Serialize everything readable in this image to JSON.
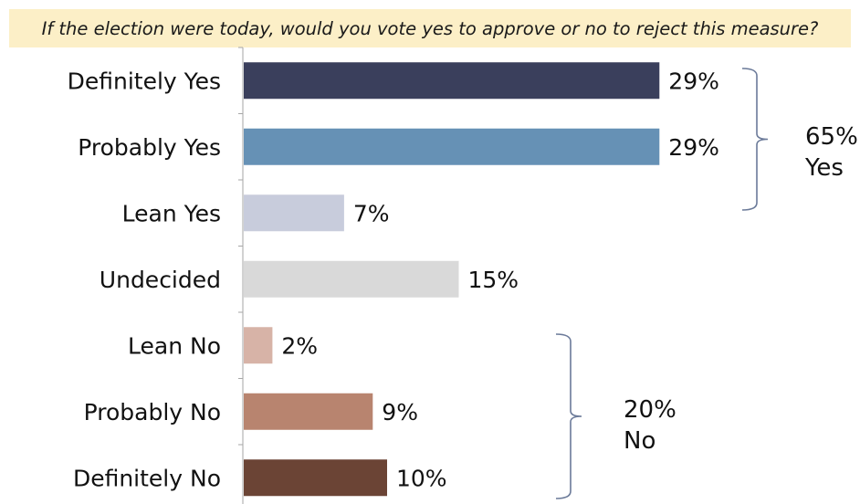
{
  "question": "If the election were today, would you vote yes to approve or no to reject this measure?",
  "chart_data": {
    "type": "bar",
    "orientation": "horizontal",
    "categories": [
      "Definitely Yes",
      "Probably Yes",
      "Lean Yes",
      "Undecided",
      "Lean No",
      "Probably No",
      "Definitely No"
    ],
    "values": [
      29,
      29,
      7,
      15,
      2,
      9,
      10
    ],
    "value_labels": [
      "29%",
      "29%",
      "7%",
      "15%",
      "2%",
      "9%",
      "10%"
    ],
    "colors": [
      "#3a3f5c",
      "#6691b5",
      "#c8ccdc",
      "#d9d9d9",
      "#d7b3a7",
      "#b8846f",
      "#6b4435"
    ],
    "unit": "%",
    "xlim": [
      0,
      30
    ],
    "grid": false,
    "groups": [
      {
        "name": "yes-group",
        "value": "65%",
        "label": "Yes",
        "from_index": 0,
        "to_index": 2
      },
      {
        "name": "no-group",
        "value": "20%",
        "label": "No",
        "from_index": 4,
        "to_index": 6
      }
    ],
    "bracket_color": "#6b7a99"
  }
}
